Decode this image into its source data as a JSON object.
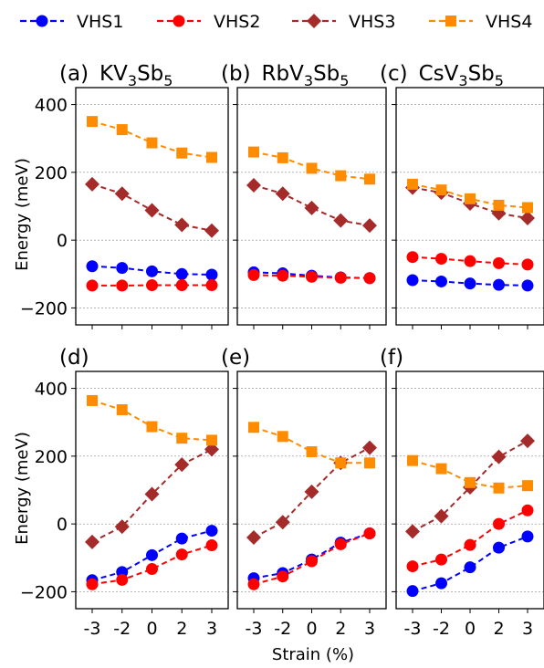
{
  "legend": [
    {
      "name": "VHS1",
      "color": "#0000ff",
      "marker": "circle"
    },
    {
      "name": "VHS2",
      "color": "#ff0000",
      "marker": "circle"
    },
    {
      "name": "VHS3",
      "color": "#a52a2a",
      "marker": "diamond"
    },
    {
      "name": "VHS4",
      "color": "#ff8c00",
      "marker": "square"
    }
  ],
  "shared": {
    "xlabel": "Strain (%)",
    "ylabel": "Energy (meV)",
    "xticks": [
      "-3",
      "-2",
      "0",
      "2",
      "3"
    ],
    "yticks": [
      "400",
      "200",
      "0",
      "−200"
    ]
  },
  "panels_text": [
    {
      "tag": "(a)",
      "material": "KV",
      "sub1": "3",
      "mid": "Sb",
      "sub2": "5"
    },
    {
      "tag": "(b)",
      "material": "RbV",
      "sub1": "3",
      "mid": "Sb",
      "sub2": "5"
    },
    {
      "tag": "(c)",
      "material": "CsV",
      "sub1": "3",
      "mid": "Sb",
      "sub2": "5"
    },
    {
      "tag": "(d)",
      "material": "",
      "sub1": "",
      "mid": "",
      "sub2": ""
    },
    {
      "tag": "(e)",
      "material": "",
      "sub1": "",
      "mid": "",
      "sub2": ""
    },
    {
      "tag": "(f)",
      "material": "",
      "sub1": "",
      "mid": "",
      "sub2": ""
    }
  ],
  "chart_data": [
    {
      "type": "line",
      "categories": [
        "-3",
        "-2",
        "0",
        "2",
        "3"
      ],
      "ylim": [
        -250,
        450
      ],
      "series": [
        {
          "name": "VHS1",
          "values": [
            -77,
            -82,
            -92,
            -100,
            -102
          ]
        },
        {
          "name": "VHS2",
          "values": [
            -134,
            -134,
            -133,
            -133,
            -133
          ]
        },
        {
          "name": "VHS3",
          "values": [
            165,
            137,
            88,
            45,
            28
          ]
        },
        {
          "name": "VHS4",
          "values": [
            350,
            326,
            287,
            257,
            244
          ]
        }
      ]
    },
    {
      "type": "line",
      "categories": [
        "-3",
        "-2",
        "0",
        "2",
        "3"
      ],
      "ylim": [
        -250,
        450
      ],
      "series": [
        {
          "name": "VHS1",
          "values": [
            -95,
            -98,
            -105,
            -110,
            -112
          ]
        },
        {
          "name": "VHS2",
          "values": [
            -103,
            -105,
            -108,
            -111,
            -112
          ]
        },
        {
          "name": "VHS3",
          "values": [
            162,
            137,
            95,
            58,
            43
          ]
        },
        {
          "name": "VHS4",
          "values": [
            260,
            243,
            212,
            190,
            180
          ]
        }
      ]
    },
    {
      "type": "line",
      "categories": [
        "-3",
        "-2",
        "0",
        "2",
        "3"
      ],
      "ylim": [
        -250,
        450
      ],
      "series": [
        {
          "name": "VHS1",
          "values": [
            -118,
            -122,
            -128,
            -132,
            -134
          ]
        },
        {
          "name": "VHS2",
          "values": [
            -50,
            -55,
            -62,
            -68,
            -72
          ]
        },
        {
          "name": "VHS3",
          "values": [
            155,
            140,
            108,
            79,
            65
          ]
        },
        {
          "name": "VHS4",
          "values": [
            165,
            148,
            122,
            103,
            96
          ]
        }
      ]
    },
    {
      "type": "line",
      "categories": [
        "-3",
        "-2",
        "0",
        "2",
        "3"
      ],
      "ylim": [
        -250,
        450
      ],
      "series": [
        {
          "name": "VHS1",
          "values": [
            -166,
            -142,
            -92,
            -43,
            -20
          ]
        },
        {
          "name": "VHS2",
          "values": [
            -178,
            -165,
            -133,
            -90,
            -63
          ]
        },
        {
          "name": "VHS3",
          "values": [
            -53,
            -8,
            88,
            175,
            220
          ]
        },
        {
          "name": "VHS4",
          "values": [
            364,
            337,
            287,
            253,
            247
          ]
        }
      ]
    },
    {
      "type": "line",
      "categories": [
        "-3",
        "-2",
        "0",
        "2",
        "3"
      ],
      "ylim": [
        -250,
        450
      ],
      "series": [
        {
          "name": "VHS1",
          "values": [
            -160,
            -145,
            -105,
            -55,
            -28
          ]
        },
        {
          "name": "VHS2",
          "values": [
            -178,
            -155,
            -110,
            -60,
            -28
          ]
        },
        {
          "name": "VHS3",
          "values": [
            -40,
            5,
            95,
            180,
            225
          ]
        },
        {
          "name": "VHS4",
          "values": [
            285,
            258,
            213,
            180,
            180
          ]
        }
      ]
    },
    {
      "type": "line",
      "categories": [
        "-3",
        "-2",
        "0",
        "2",
        "3"
      ],
      "ylim": [
        -250,
        450
      ],
      "series": [
        {
          "name": "VHS1",
          "values": [
            -198,
            -175,
            -128,
            -70,
            -37
          ]
        },
        {
          "name": "VHS2",
          "values": [
            -125,
            -105,
            -62,
            0,
            40
          ]
        },
        {
          "name": "VHS3",
          "values": [
            -22,
            23,
            108,
            198,
            245
          ]
        },
        {
          "name": "VHS4",
          "values": [
            187,
            163,
            122,
            106,
            113
          ]
        }
      ]
    }
  ]
}
